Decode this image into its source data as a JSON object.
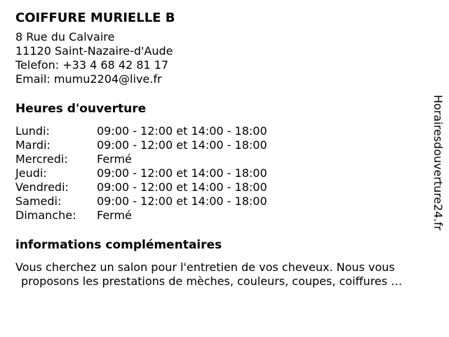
{
  "colors": {
    "text": "#000000",
    "background": "#ffffff"
  },
  "page": {
    "title": "COIFFURE MURIELLE B",
    "watermark": "Horairesdouverture24.fr"
  },
  "contact": {
    "street": "8 Rue du Calvaire",
    "city": "11120 Saint-Nazaire-d'Aude",
    "phone_label": "Telefon:",
    "phone_number": "+33 4 68 42 81 17",
    "email_label": "Email:",
    "email_address": "mumu2204@live.fr"
  },
  "hours": {
    "heading": "Heures d'ouverture",
    "rows": [
      {
        "day": "Lundi:",
        "time": "09:00 - 12:00 et 14:00 - 18:00"
      },
      {
        "day": "Mardi:",
        "time": "09:00 - 12:00 et 14:00 - 18:00"
      },
      {
        "day": "Mercredi:",
        "time": "Fermé"
      },
      {
        "day": "Jeudi:",
        "time": "09:00 - 12:00 et 14:00 - 18:00"
      },
      {
        "day": "Vendredi:",
        "time": "09:00 - 12:00 et 14:00 - 18:00"
      },
      {
        "day": "Samedi:",
        "time": "09:00 - 12:00 et 14:00 - 18:00"
      },
      {
        "day": "Dimanche:",
        "time": "Fermé"
      }
    ]
  },
  "info": {
    "heading": "informations complémentaires",
    "line1": "Vous cherchez un salon pour l'entretien de vos cheveux. Nous vous",
    "line2": "proposons les prestations de mèches, couleurs, coupes, coiffures …"
  }
}
